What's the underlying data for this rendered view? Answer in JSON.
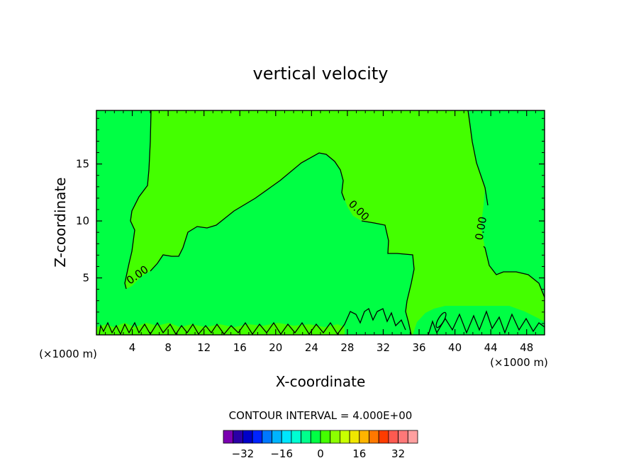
{
  "chart_data": {
    "type": "contour",
    "title": "vertical velocity",
    "xlabel": "X-coordinate",
    "ylabel": "Z-coordinate",
    "x_unit_left": "(×1000 m)",
    "x_unit_right": "(×1000 m)",
    "xlim": [
      0,
      50
    ],
    "ylim": [
      0,
      19.7
    ],
    "xticks": [
      4,
      8,
      12,
      16,
      20,
      24,
      28,
      32,
      36,
      40,
      44,
      48
    ],
    "yticks": [
      5,
      10,
      15
    ],
    "contour_interval_text": "CONTOUR INTERVAL = 4.000E+00",
    "contour_labels": [
      {
        "text": "0.00",
        "x": 4.8,
        "y": 5.0
      },
      {
        "text": "0.00",
        "x": 29.0,
        "y": 10.7
      },
      {
        "text": "0.00",
        "x": 43.3,
        "y": 9.3
      }
    ],
    "regions": [
      {
        "name": "zero-to-positive",
        "color": "#44ff00"
      },
      {
        "name": "zero-to-negative",
        "color": "#00ff44"
      }
    ],
    "colorbar": {
      "colors": [
        "#7a00b0",
        "#2a00a6",
        "#0000c8",
        "#0024ff",
        "#0078ff",
        "#00b4ff",
        "#00e6ff",
        "#00ffd2",
        "#00ff8c",
        "#00ff44",
        "#44ff00",
        "#8cff00",
        "#c8ff00",
        "#f0e600",
        "#ffb400",
        "#ff7800",
        "#ff3c00",
        "#ff5a50",
        "#ff7878",
        "#ffa0a0"
      ],
      "ticks": [
        "−32",
        "−16",
        "0",
        "16",
        "32"
      ]
    },
    "grid": false
  }
}
